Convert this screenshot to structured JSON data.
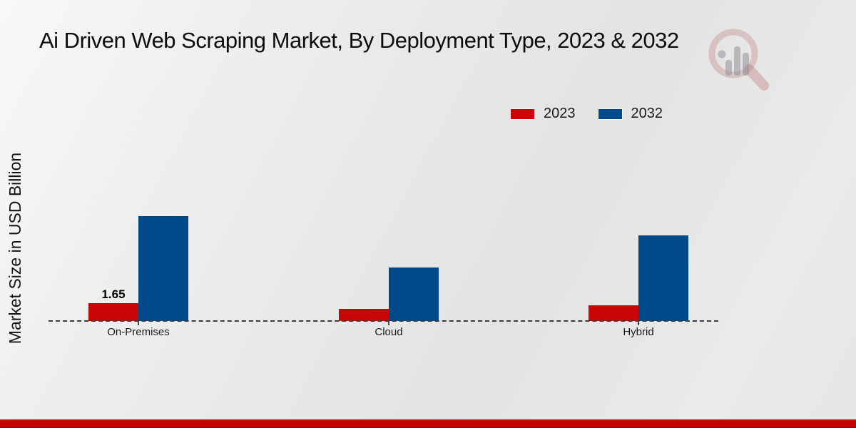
{
  "title": "Ai Driven Web Scraping Market, By Deployment Type, 2023 & 2032",
  "y_axis_label": "Market Size in USD Billion",
  "watermark_icon": "magnifier-bar-chart-logo",
  "colors": {
    "series_2023": "#c90606",
    "series_2032": "#00498a",
    "baseline": "#3c3c3c",
    "bottom_strip": "#c70404",
    "background": "#e9e9e9",
    "title_text": "#0d0d0d"
  },
  "chart_data": {
    "type": "bar",
    "categories": [
      "On-Premises",
      "Cloud",
      "Hybrid"
    ],
    "series": [
      {
        "name": "2023",
        "color": "#c90606",
        "values": [
          1.65,
          1.1,
          1.45
        ]
      },
      {
        "name": "2032",
        "color": "#00498a",
        "values": [
          9.7,
          4.95,
          7.9
        ]
      }
    ],
    "data_labels": [
      {
        "series": "2023",
        "category": "On-Premises",
        "text": "1.65"
      }
    ],
    "title": "Ai Driven Web Scraping Market, By Deployment Type, 2023 & 2032",
    "xlabel": "",
    "ylabel": "Market Size in USD Billion",
    "ylim": [
      0,
      10
    ],
    "grid": false,
    "legend_position": "top-right",
    "baseline_style": "dashed",
    "note": "Only the 1.65 value is printed on the chart; other values estimated from bar heights."
  }
}
